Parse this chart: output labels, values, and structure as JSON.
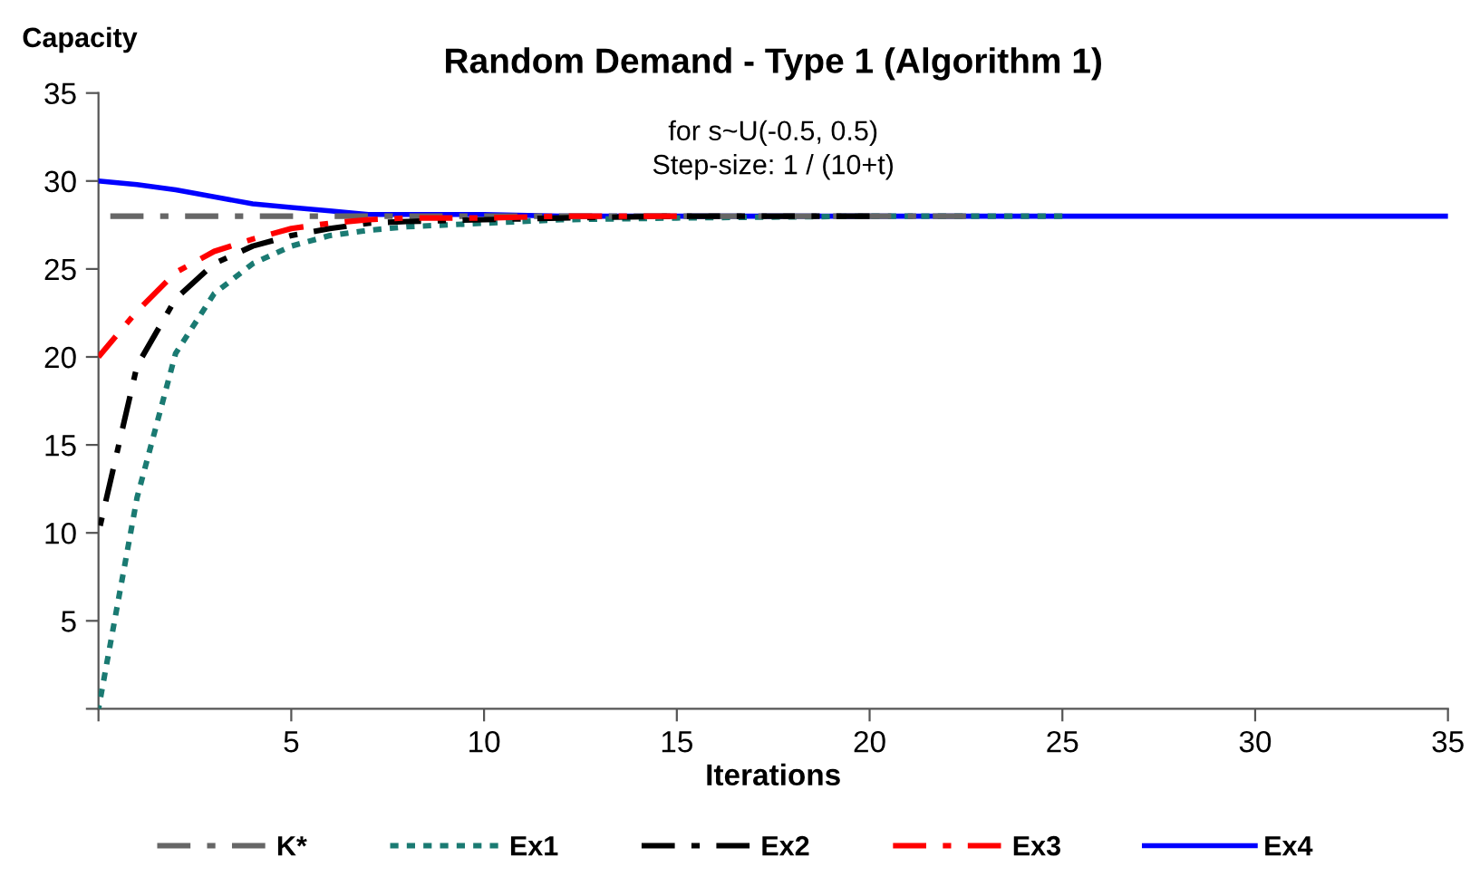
{
  "chart_data": {
    "type": "line",
    "title": "Random Demand - Type 1 (Algorithm 1)",
    "xlabel": "Iterations",
    "ylabel": "Capacity",
    "annotations": [
      "for s~U(-0.5, 0.5)",
      "Step-size: 1 / (10+t)"
    ],
    "x": [
      0,
      1,
      2,
      3,
      4,
      5,
      6,
      7,
      8,
      10,
      12,
      15,
      20,
      25,
      30,
      35
    ],
    "series": [
      {
        "name": "K*",
        "color": "#666666",
        "line_style": "dashed",
        "x": [
          0,
          22.5
        ],
        "values": [
          28,
          28
        ]
      },
      {
        "name": "Ex1",
        "color": "#1a7a72",
        "line_style": "dotted",
        "values": [
          0,
          12,
          20.2,
          23.6,
          25.3,
          26.3,
          26.9,
          27.2,
          27.4,
          27.6,
          27.8,
          27.9,
          28,
          28,
          null,
          null
        ]
      },
      {
        "name": "Ex2",
        "color": "#000000",
        "line_style": "dashed",
        "values": [
          10,
          19.5,
          23.3,
          25.3,
          26.3,
          26.9,
          27.3,
          27.6,
          27.7,
          27.8,
          27.9,
          28,
          28,
          null,
          null,
          null
        ]
      },
      {
        "name": "Ex3",
        "color": "#ff0000",
        "line_style": "dashed",
        "values": [
          20,
          22.6,
          24.8,
          26,
          26.7,
          27.3,
          27.6,
          27.8,
          27.9,
          27.9,
          28,
          28,
          null,
          null,
          null,
          null
        ]
      },
      {
        "name": "Ex4",
        "color": "#0000ff",
        "line_style": "solid",
        "values": [
          30,
          29.8,
          29.5,
          29.1,
          28.7,
          28.5,
          28.3,
          28.1,
          28.1,
          28.1,
          28,
          28,
          28,
          28,
          28,
          28
        ]
      }
    ],
    "xlim": [
      0,
      35
    ],
    "xticks": [
      {
        "value": 0,
        "label": null
      },
      5,
      10,
      15,
      20,
      25,
      30,
      35
    ],
    "ylim": [
      0,
      35
    ],
    "yticks": [
      {
        "value": 0,
        "label": null
      },
      5,
      10,
      15,
      20,
      25,
      30,
      35
    ],
    "grid": false,
    "legend": "bottom",
    "marker": "none"
  }
}
